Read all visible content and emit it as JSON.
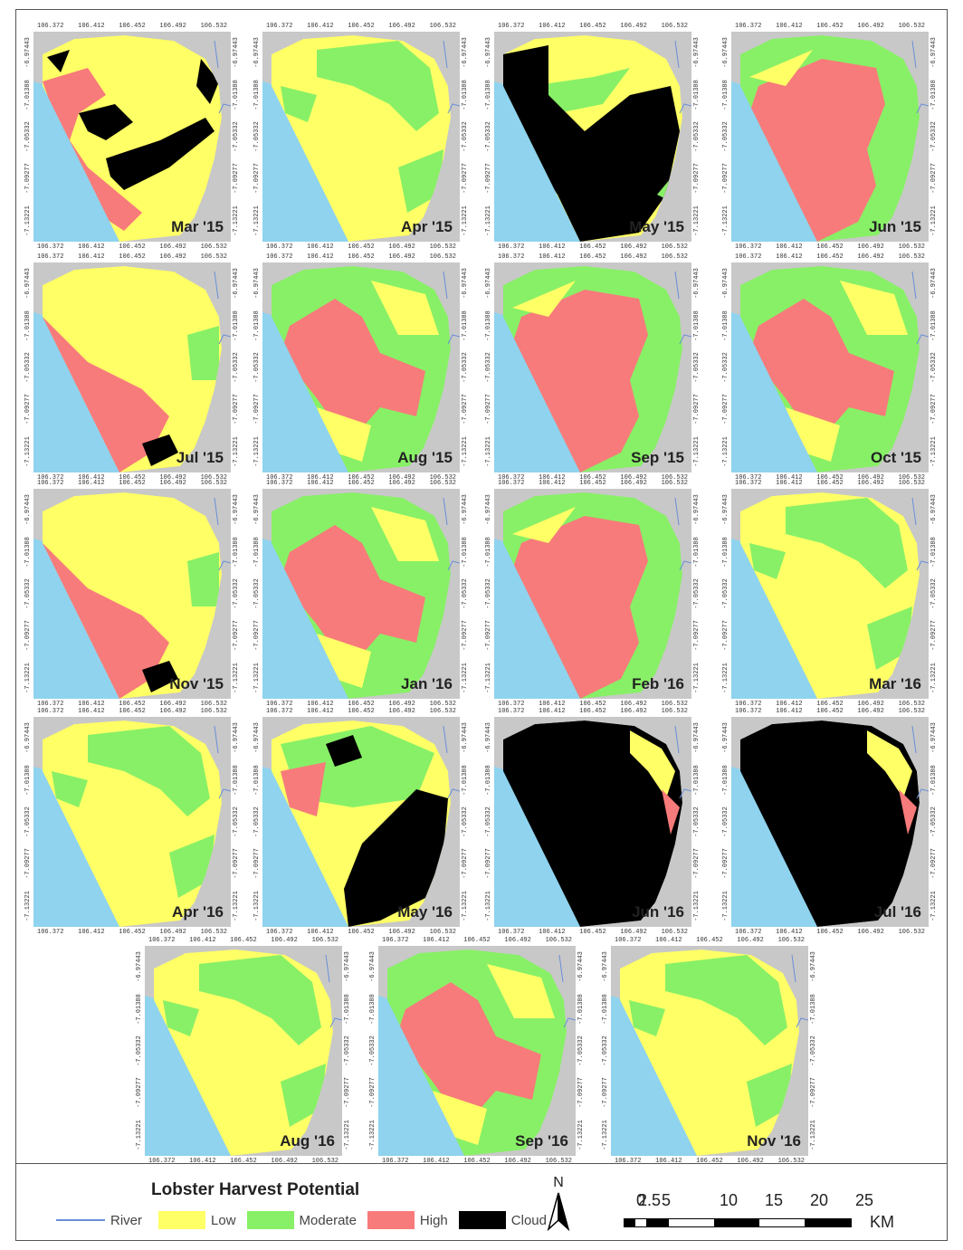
{
  "panels": [
    {
      "label": "Mar '15",
      "scheme": "mix-cloud"
    },
    {
      "label": "Apr '15",
      "scheme": "yellow-green"
    },
    {
      "label": "May '15",
      "scheme": "cloud-heavy"
    },
    {
      "label": "Jun '15",
      "scheme": "red-heavy"
    },
    {
      "label": "Jul '15",
      "scheme": "yellow-red"
    },
    {
      "label": "Aug '15",
      "scheme": "red-green"
    },
    {
      "label": "Sep '15",
      "scheme": "red-heavy"
    },
    {
      "label": "Oct '15",
      "scheme": "red-green"
    },
    {
      "label": "Nov '15",
      "scheme": "yellow-red"
    },
    {
      "label": "Jan '16",
      "scheme": "red-green"
    },
    {
      "label": "Feb '16",
      "scheme": "red-heavy"
    },
    {
      "label": "Mar '16",
      "scheme": "yellow-green"
    },
    {
      "label": "Apr '16",
      "scheme": "yellow-green"
    },
    {
      "label": "May '16",
      "scheme": "cloud-half"
    },
    {
      "label": "Jun '16",
      "scheme": "cloud-full"
    },
    {
      "label": "Jul '16",
      "scheme": "cloud-full"
    },
    {
      "label": "Aug '16",
      "scheme": "yellow-green"
    },
    {
      "label": "Sep '16",
      "scheme": "red-green"
    },
    {
      "label": "Nov '16",
      "scheme": "yellow-green"
    }
  ],
  "axis": {
    "lon_ticks": [
      "106.372",
      "106.412",
      "106.452",
      "106.492",
      "106.532"
    ],
    "lat_ticks": [
      "-6.97443",
      "-7.01388",
      "-7.05332",
      "-7.09277",
      "-7.13221"
    ]
  },
  "legend": {
    "title": "Lobster Harvest Potential",
    "items": [
      {
        "label": "River",
        "color": "#6a8fd8",
        "kind": "line"
      },
      {
        "label": "Low",
        "color": "#ffff66",
        "kind": "swatch"
      },
      {
        "label": "Moderate",
        "color": "#88f066",
        "kind": "swatch"
      },
      {
        "label": "High",
        "color": "#f77b7b",
        "kind": "swatch"
      },
      {
        "label": "Cloud",
        "color": "#000000",
        "kind": "swatch"
      }
    ]
  },
  "north_label": "N",
  "scale": {
    "labels": [
      "0",
      "2.5",
      "5",
      "10",
      "15",
      "20",
      "25"
    ],
    "unit": "KM"
  },
  "colors": {
    "land_bg": "#c8c8c8",
    "sea": "#8fd3ee",
    "low": "#ffff66",
    "moderate": "#88f066",
    "high": "#f77b7b",
    "cloud": "#000000"
  }
}
